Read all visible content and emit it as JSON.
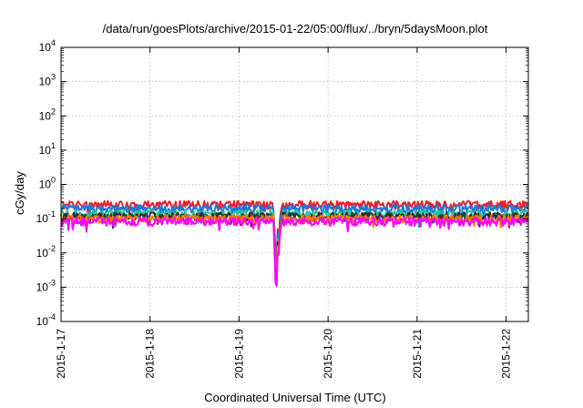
{
  "chart_data": {
    "type": "line",
    "title": "/data/run/goesPlots/archive/2015-01-22/05:00/flux/../bryn/5daysMoon.plot",
    "xlabel": "Coordinated Universal Time (UTC)",
    "ylabel": "cGy/day",
    "yscale": "log",
    "ylim": [
      0.0001,
      10000
    ],
    "y_tick_exponents": [
      -4,
      -3,
      -2,
      -1,
      0,
      1,
      2,
      3,
      4
    ],
    "y_tick_base": "10",
    "xlim": [
      "2015-01-17",
      "2015-01-22 06:00"
    ],
    "x_tick_labels": [
      "2015-1-17",
      "2015-1-18",
      "2015-1-19",
      "2015-1-20",
      "2015-1-21",
      "2015-1-22"
    ],
    "grid": true,
    "series": [
      {
        "color": "#e8202a",
        "baseline": 0.26,
        "dip_min": 0.004
      },
      {
        "color": "#1f78d8",
        "baseline": 0.2,
        "dip_min": 0.003
      },
      {
        "color": "#20c8a0",
        "baseline": 0.14,
        "dip_min": 0.002
      },
      {
        "color": "#303030",
        "baseline": 0.12,
        "dip_min": 0.0015
      },
      {
        "color": "#ff7a00",
        "baseline": 0.1,
        "dip_min": 0.001
      },
      {
        "color": "#ff00ff",
        "baseline": 0.085,
        "dip_min": 0.0004
      }
    ],
    "dip_time": "2015-01-19 10:30"
  }
}
